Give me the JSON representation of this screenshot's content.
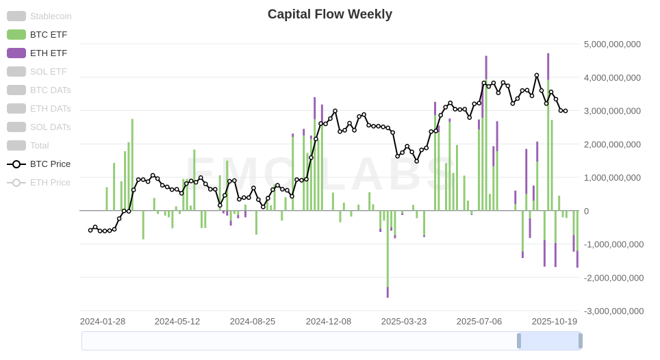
{
  "title": "Capital Flow Weekly",
  "watermark": "EMC LABS",
  "legend": [
    {
      "label": "Stablecoin",
      "color": "#cccccc",
      "kind": "bar",
      "active": false
    },
    {
      "label": "BTC ETF",
      "color": "#91cc75",
      "kind": "bar",
      "active": true
    },
    {
      "label": "ETH ETF",
      "color": "#9a60b4",
      "kind": "bar",
      "active": true
    },
    {
      "label": "SOL ETF",
      "color": "#cccccc",
      "kind": "bar",
      "active": false
    },
    {
      "label": "BTC DATs",
      "color": "#cccccc",
      "kind": "bar",
      "active": false
    },
    {
      "label": "ETH DATs",
      "color": "#cccccc",
      "kind": "bar",
      "active": false
    },
    {
      "label": "SOL DATs",
      "color": "#cccccc",
      "kind": "bar",
      "active": false
    },
    {
      "label": "Total",
      "color": "#cccccc",
      "kind": "bar",
      "active": false
    },
    {
      "label": "BTC Price",
      "color": "#000000",
      "kind": "line",
      "active": true
    },
    {
      "label": "ETH Price",
      "color": "#cccccc",
      "kind": "line",
      "active": false
    }
  ],
  "chart_data": {
    "type": "bar",
    "title": "Capital Flow Weekly",
    "x_tick_labels": [
      "2024-01-28",
      "2024-05-12",
      "2024-08-25",
      "2024-12-08",
      "2025-03-23",
      "2025-07-06",
      "2025-10-19"
    ],
    "y_tick_labels": [
      "5,000,000,000",
      "4,000,000,000",
      "3,000,000,000",
      "2,000,000,000",
      "1,000,000,000",
      "0",
      "-1,000,000,000",
      "-2,000,000,000",
      "-3,000,000,000"
    ],
    "ylim": [
      -3000000000,
      5000000000
    ],
    "grid": true,
    "legend_position": "left",
    "btc_etf": [
      0,
      0,
      0,
      0,
      0,
      0,
      0,
      700000000,
      0,
      1430000000,
      0,
      880000000,
      1780000000,
      2050000000,
      2750000000,
      0,
      0,
      -860000000,
      0,
      0,
      380000000,
      -100000000,
      0,
      -150000000,
      -200000000,
      -530000000,
      130000000,
      -100000000,
      950000000,
      950000000,
      150000000,
      1830000000,
      0,
      -520000000,
      -520000000,
      0,
      0,
      0,
      1060000000,
      0,
      1500000000,
      -300000000,
      -100000000,
      -130000000,
      0,
      180000000,
      0,
      0,
      -720000000,
      0,
      0,
      450000000,
      160000000,
      780000000,
      0,
      -300000000,
      400000000,
      0,
      2210000000,
      0,
      0,
      2250000000,
      1730000000,
      2150000000,
      2740000000,
      2120000000,
      2550000000,
      0,
      0,
      540000000,
      0,
      -350000000,
      240000000,
      0,
      -180000000,
      0,
      180000000,
      0,
      0,
      550000000,
      190000000,
      0,
      -540000000,
      -300000000,
      -2290000000,
      -500000000,
      -730000000,
      0,
      -80000000,
      0,
      0,
      170000000,
      -210000000,
      0,
      -740000000,
      0,
      0,
      2860000000,
      2350000000,
      0,
      1420000000,
      2660000000,
      1130000000,
      1970000000,
      0,
      1050000000,
      300000000,
      -110000000,
      0,
      2430000000,
      2780000000,
      3940000000,
      500000000,
      1330000000,
      1780000000,
      0,
      0,
      0,
      0,
      200000000,
      0,
      -1220000000,
      500000000,
      -230000000,
      300000000,
      1470000000,
      0,
      -880000000,
      3920000000,
      2720000000,
      -970000000,
      450000000,
      -200000000,
      -220000000,
      0,
      -730000000,
      -1200000000
    ],
    "eth_etf": [
      0,
      0,
      0,
      0,
      0,
      0,
      0,
      0,
      0,
      0,
      0,
      0,
      0,
      0,
      0,
      0,
      0,
      0,
      0,
      0,
      0,
      0,
      0,
      0,
      0,
      0,
      0,
      0,
      0,
      0,
      0,
      0,
      0,
      0,
      0,
      0,
      0,
      0,
      0,
      -80000000,
      -150000000,
      -150000000,
      0,
      -100000000,
      0,
      -200000000,
      0,
      0,
      0,
      0,
      0,
      0,
      0,
      0,
      0,
      0,
      0,
      0,
      100000000,
      0,
      0,
      200000000,
      0,
      100000000,
      660000000,
      0,
      630000000,
      0,
      0,
      0,
      0,
      0,
      0,
      0,
      0,
      0,
      0,
      0,
      0,
      0,
      0,
      0,
      -100000000,
      0,
      -320000000,
      -100000000,
      -100000000,
      0,
      -50000000,
      0,
      0,
      0,
      -10000000,
      0,
      -50000000,
      0,
      0,
      400000000,
      200000000,
      0,
      0,
      100000000,
      0,
      0,
      0,
      0,
      0,
      -20000000,
      0,
      300000000,
      1000000000,
      700000000,
      0,
      600000000,
      900000000,
      0,
      0,
      0,
      0,
      400000000,
      0,
      -200000000,
      1350000000,
      -590000000,
      450000000,
      600000000,
      0,
      -800000000,
      800000000,
      0,
      -720000000,
      0,
      0,
      0,
      0,
      -500000000,
      -510000000
    ],
    "btc_price": [
      null,
      null,
      -590000000,
      -490000000,
      -610000000,
      -610000000,
      -600000000,
      -560000000,
      -240000000,
      -10000000,
      -20000000,
      620000000,
      930000000,
      930000000,
      870000000,
      1060000000,
      960000000,
      760000000,
      710000000,
      630000000,
      640000000,
      520000000,
      810000000,
      890000000,
      850000000,
      990000000,
      800000000,
      640000000,
      640000000,
      160000000,
      460000000,
      880000000,
      900000000,
      340000000,
      390000000,
      390000000,
      680000000,
      330000000,
      110000000,
      370000000,
      630000000,
      760000000,
      640000000,
      610000000,
      430000000,
      930000000,
      910000000,
      940000000,
      1590000000,
      2150000000,
      2610000000,
      2600000000,
      2760000000,
      2990000000,
      2370000000,
      2410000000,
      2620000000,
      2410000000,
      2820000000,
      2880000000,
      2560000000,
      2530000000,
      2530000000,
      2510000000,
      2480000000,
      2340000000,
      1630000000,
      1740000000,
      1930000000,
      1760000000,
      1480000000,
      1820000000,
      1880000000,
      2370000000,
      2390000000,
      2860000000,
      3100000000,
      3230000000,
      3040000000,
      3030000000,
      3040000000,
      2790000000,
      3200000000,
      3220000000,
      3830000000,
      3720000000,
      3830000000,
      3530000000,
      3840000000,
      3740000000,
      3210000000,
      3360000000,
      3600000000,
      3610000000,
      3440000000,
      4060000000,
      3600000000,
      3210000000,
      3560000000,
      3340000000,
      3000000000,
      2990000000
    ],
    "btc_price_note_unused": null
  },
  "zoom": {
    "start_percent": 88,
    "end_percent": 100
  }
}
